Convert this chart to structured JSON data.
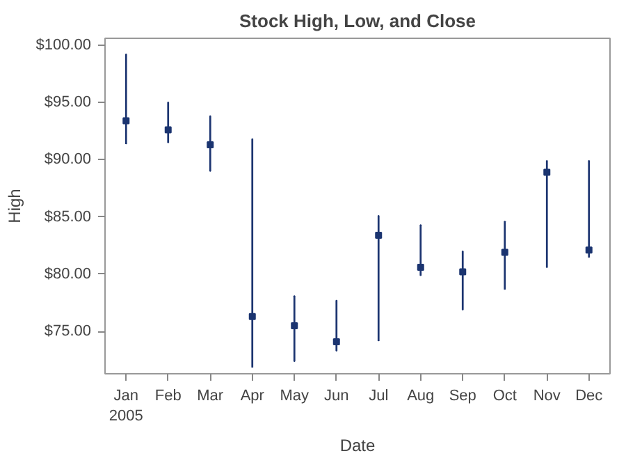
{
  "chart_data": {
    "type": "bar",
    "title": "Stock High, Low, and Close",
    "xlabel": "Date",
    "ylabel": "High",
    "categories": [
      "Jan\n2005",
      "Feb",
      "Mar",
      "Apr",
      "May",
      "Jun",
      "Jul",
      "Aug",
      "Sep",
      "Oct",
      "Nov",
      "Dec"
    ],
    "series": [
      {
        "color": "#1b3470",
        "base": [
          91.4,
          91.5,
          89.0,
          71.9,
          72.4,
          73.3,
          74.2,
          79.9,
          76.9,
          78.7,
          80.6,
          81.5
        ],
        "values": [
          7.8,
          3.5,
          4.8,
          19.9,
          5.7,
          4.4,
          10.9,
          4.4,
          5.1,
          5.9,
          9.3,
          8.4
        ]
      },
      {
        "type": "scatter",
        "color": "#1b3470",
        "x": [
          "Jan\n2005",
          "Feb",
          "Mar",
          "Apr",
          "May",
          "Jun",
          "Jul",
          "Aug",
          "Sep",
          "Oct",
          "Nov",
          "Dec"
        ],
        "values": [
          93.4,
          92.6,
          91.3,
          76.3,
          75.5,
          74.1,
          83.4,
          80.6,
          80.2,
          81.9,
          88.9,
          82.1
        ]
      }
    ],
    "ylim": [
      71.3,
      100.6
    ],
    "yticks": [
      {
        "value": 75,
        "label": "$75.00"
      },
      {
        "value": 80,
        "label": "$80.00"
      },
      {
        "value": 85,
        "label": "$85.00"
      },
      {
        "value": 90,
        "label": "$90.00"
      },
      {
        "value": 95,
        "label": "$95.00"
      },
      {
        "value": 100,
        "label": "$100.00"
      }
    ],
    "grid": false
  }
}
